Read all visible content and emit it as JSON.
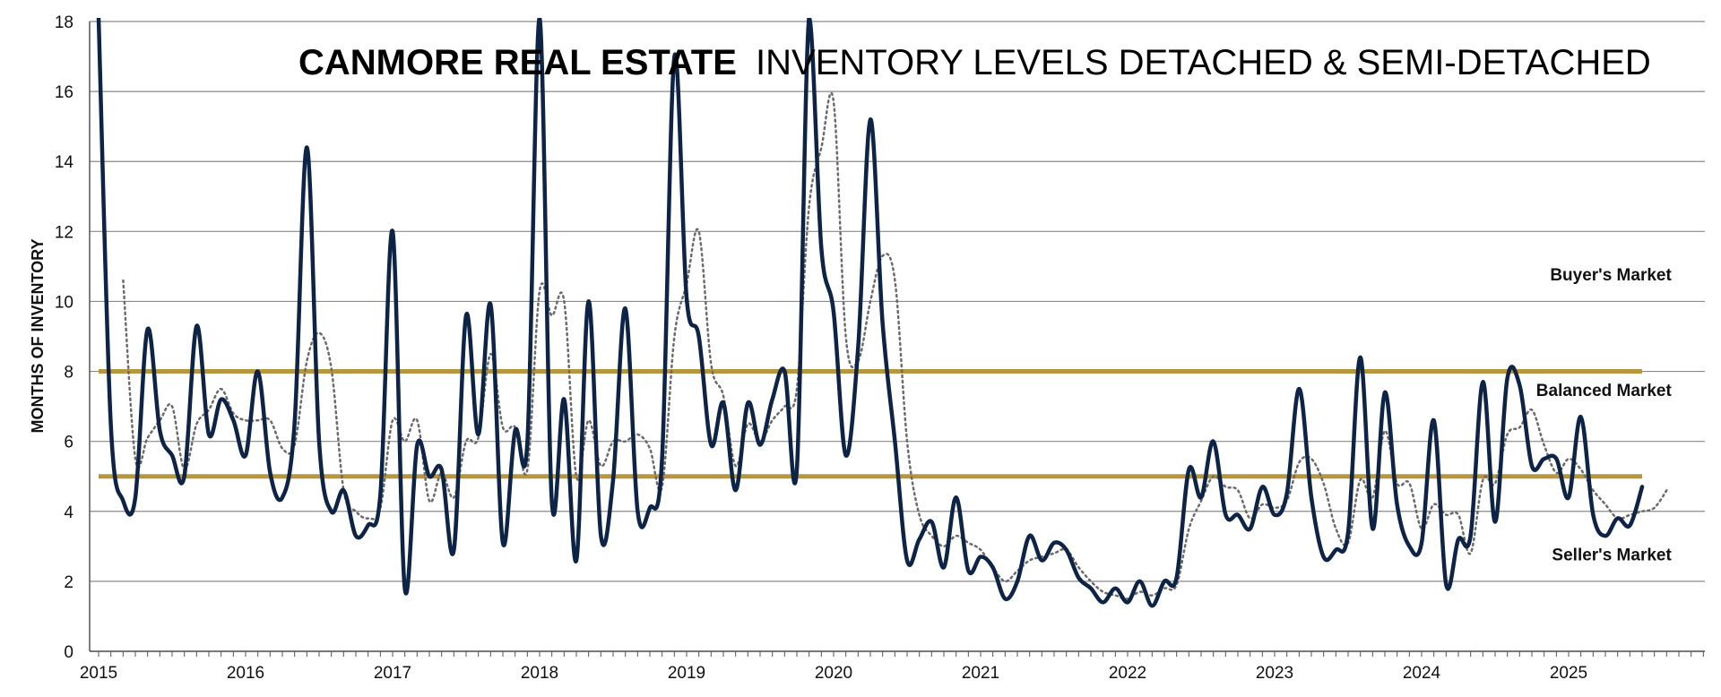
{
  "colors": {
    "main_line": "#0e2446",
    "trend_line": "#6b6b6b",
    "threshold": "#b8963e",
    "grid": "#8a8a8a",
    "axis": "#555555"
  },
  "chart_data": {
    "type": "line",
    "title_bold": "CANMORE REAL ESTATE",
    "title_rest": "INVENTORY LEVELS DETACHED & SEMI-DETACHED",
    "ylabel": "MONTHS OF INVENTORY",
    "xlabel": "",
    "ylim": [
      0,
      18
    ],
    "yticks": [
      0,
      2,
      4,
      6,
      8,
      10,
      12,
      14,
      16,
      18
    ],
    "xlim": [
      2015,
      2025.9
    ],
    "xticks": [
      2015,
      2016,
      2017,
      2018,
      2019,
      2020,
      2021,
      2022,
      2023,
      2024,
      2025
    ],
    "xtick_labels": [
      "2015",
      "2016",
      "2017",
      "2018",
      "2019",
      "2020",
      "2021",
      "2022",
      "2023",
      "2024",
      "2025"
    ],
    "grid": true,
    "thresholds": [
      {
        "value": 8,
        "x_range": [
          2015,
          2025.5
        ]
      },
      {
        "value": 5,
        "x_range": [
          2015,
          2025.5
        ]
      }
    ],
    "annotations": [
      {
        "text": "Buyer's Market",
        "x": 2025.7,
        "y": 10.6
      },
      {
        "text": "Balanced Market",
        "x": 2025.7,
        "y": 7.3
      },
      {
        "text": "Seller's Market",
        "x": 2025.7,
        "y": 2.6
      }
    ],
    "series": [
      {
        "style": "solid",
        "points": [
          [
            2015.0,
            18.5
          ],
          [
            2015.083,
            6.5
          ],
          [
            2015.167,
            4.3
          ],
          [
            2015.25,
            4.4
          ],
          [
            2015.333,
            9.2
          ],
          [
            2015.417,
            6.3
          ],
          [
            2015.5,
            5.6
          ],
          [
            2015.583,
            5.0
          ],
          [
            2015.667,
            9.3
          ],
          [
            2015.75,
            6.2
          ],
          [
            2015.833,
            7.2
          ],
          [
            2015.917,
            6.6
          ],
          [
            2016.0,
            5.6
          ],
          [
            2016.083,
            8.0
          ],
          [
            2016.167,
            5.1
          ],
          [
            2016.25,
            4.4
          ],
          [
            2016.333,
            6.5
          ],
          [
            2016.417,
            14.4
          ],
          [
            2016.5,
            6.0
          ],
          [
            2016.583,
            4.0
          ],
          [
            2016.667,
            4.6
          ],
          [
            2016.75,
            3.3
          ],
          [
            2016.833,
            3.6
          ],
          [
            2016.917,
            4.5
          ],
          [
            2017.0,
            12.0
          ],
          [
            2017.083,
            1.8
          ],
          [
            2017.167,
            5.9
          ],
          [
            2017.25,
            5.0
          ],
          [
            2017.333,
            5.2
          ],
          [
            2017.417,
            2.9
          ],
          [
            2017.5,
            9.6
          ],
          [
            2017.583,
            6.2
          ],
          [
            2017.667,
            9.9
          ],
          [
            2017.75,
            3.1
          ],
          [
            2017.833,
            6.3
          ],
          [
            2017.917,
            6.0
          ],
          [
            2018.0,
            18.5
          ],
          [
            2018.083,
            4.3
          ],
          [
            2018.167,
            7.2
          ],
          [
            2018.25,
            2.6
          ],
          [
            2018.333,
            10.0
          ],
          [
            2018.417,
            3.3
          ],
          [
            2018.5,
            4.9
          ],
          [
            2018.583,
            9.8
          ],
          [
            2018.667,
            4.0
          ],
          [
            2018.75,
            4.1
          ],
          [
            2018.833,
            5.5
          ],
          [
            2018.917,
            17.0
          ],
          [
            2019.0,
            10.1
          ],
          [
            2019.083,
            9.0
          ],
          [
            2019.167,
            5.9
          ],
          [
            2019.25,
            7.1
          ],
          [
            2019.333,
            4.6
          ],
          [
            2019.417,
            7.1
          ],
          [
            2019.5,
            5.9
          ],
          [
            2019.583,
            7.2
          ],
          [
            2019.667,
            8.0
          ],
          [
            2019.75,
            5.2
          ],
          [
            2019.833,
            18.5
          ],
          [
            2019.917,
            11.5
          ],
          [
            2020.0,
            9.7
          ],
          [
            2020.083,
            5.6
          ],
          [
            2020.167,
            8.7
          ],
          [
            2020.25,
            15.2
          ],
          [
            2020.333,
            9.4
          ],
          [
            2020.417,
            6.0
          ],
          [
            2020.5,
            2.6
          ],
          [
            2020.583,
            3.2
          ],
          [
            2020.667,
            3.7
          ],
          [
            2020.75,
            2.4
          ],
          [
            2020.833,
            4.4
          ],
          [
            2020.917,
            2.3
          ],
          [
            2021.0,
            2.7
          ],
          [
            2021.083,
            2.4
          ],
          [
            2021.167,
            1.5
          ],
          [
            2021.25,
            2.0
          ],
          [
            2021.333,
            3.3
          ],
          [
            2021.417,
            2.6
          ],
          [
            2021.5,
            3.1
          ],
          [
            2021.583,
            2.9
          ],
          [
            2021.667,
            2.1
          ],
          [
            2021.75,
            1.8
          ],
          [
            2021.833,
            1.4
          ],
          [
            2021.917,
            1.8
          ],
          [
            2022.0,
            1.4
          ],
          [
            2022.083,
            2.0
          ],
          [
            2022.167,
            1.3
          ],
          [
            2022.25,
            2.0
          ],
          [
            2022.333,
            2.1
          ],
          [
            2022.417,
            5.2
          ],
          [
            2022.5,
            4.4
          ],
          [
            2022.583,
            6.0
          ],
          [
            2022.667,
            3.9
          ],
          [
            2022.75,
            3.9
          ],
          [
            2022.833,
            3.5
          ],
          [
            2022.917,
            4.7
          ],
          [
            2023.0,
            3.9
          ],
          [
            2023.083,
            4.5
          ],
          [
            2023.167,
            7.5
          ],
          [
            2023.25,
            4.4
          ],
          [
            2023.333,
            2.7
          ],
          [
            2023.417,
            2.9
          ],
          [
            2023.5,
            3.4
          ],
          [
            2023.583,
            8.4
          ],
          [
            2023.667,
            3.5
          ],
          [
            2023.75,
            7.4
          ],
          [
            2023.833,
            4.2
          ],
          [
            2023.917,
            3.0
          ],
          [
            2024.0,
            3.1
          ],
          [
            2024.083,
            6.6
          ],
          [
            2024.167,
            1.9
          ],
          [
            2024.25,
            3.2
          ],
          [
            2024.333,
            3.3
          ],
          [
            2024.417,
            7.7
          ],
          [
            2024.5,
            3.7
          ],
          [
            2024.583,
            7.8
          ],
          [
            2024.667,
            7.6
          ],
          [
            2024.75,
            5.3
          ],
          [
            2024.833,
            5.5
          ],
          [
            2024.917,
            5.5
          ],
          [
            2025.0,
            4.4
          ],
          [
            2025.083,
            6.7
          ],
          [
            2025.167,
            3.9
          ],
          [
            2025.25,
            3.3
          ],
          [
            2025.333,
            3.8
          ],
          [
            2025.417,
            3.6
          ],
          [
            2025.5,
            4.7
          ]
        ]
      },
      {
        "style": "dotted",
        "points": [
          [
            2015.167,
            10.6
          ],
          [
            2015.25,
            5.5
          ],
          [
            2015.333,
            6.1
          ],
          [
            2015.417,
            6.6
          ],
          [
            2015.5,
            7.0
          ],
          [
            2015.583,
            5.2
          ],
          [
            2015.667,
            6.5
          ],
          [
            2015.75,
            6.9
          ],
          [
            2015.833,
            7.5
          ],
          [
            2015.917,
            6.8
          ],
          [
            2016.0,
            6.6
          ],
          [
            2016.083,
            6.6
          ],
          [
            2016.167,
            6.6
          ],
          [
            2016.25,
            5.8
          ],
          [
            2016.333,
            5.9
          ],
          [
            2016.417,
            8.3
          ],
          [
            2016.5,
            9.1
          ],
          [
            2016.583,
            8.1
          ],
          [
            2016.667,
            4.6
          ],
          [
            2016.75,
            4.0
          ],
          [
            2016.833,
            3.8
          ],
          [
            2016.917,
            4.1
          ],
          [
            2017.0,
            6.6
          ],
          [
            2017.083,
            6.0
          ],
          [
            2017.167,
            6.6
          ],
          [
            2017.25,
            4.3
          ],
          [
            2017.333,
            5.1
          ],
          [
            2017.417,
            4.4
          ],
          [
            2017.5,
            6.0
          ],
          [
            2017.583,
            6.1
          ],
          [
            2017.667,
            8.5
          ],
          [
            2017.75,
            6.4
          ],
          [
            2017.833,
            6.4
          ],
          [
            2017.917,
            5.2
          ],
          [
            2018.0,
            10.3
          ],
          [
            2018.083,
            9.6
          ],
          [
            2018.167,
            10.0
          ],
          [
            2018.25,
            5.0
          ],
          [
            2018.333,
            6.6
          ],
          [
            2018.417,
            5.3
          ],
          [
            2018.5,
            6.0
          ],
          [
            2018.583,
            6.0
          ],
          [
            2018.667,
            6.2
          ],
          [
            2018.75,
            5.8
          ],
          [
            2018.833,
            4.7
          ],
          [
            2018.917,
            9.0
          ],
          [
            2019.0,
            10.5
          ],
          [
            2019.083,
            12.0
          ],
          [
            2019.167,
            8.2
          ],
          [
            2019.25,
            7.3
          ],
          [
            2019.333,
            5.3
          ],
          [
            2019.417,
            6.5
          ],
          [
            2019.5,
            6.0
          ],
          [
            2019.583,
            6.6
          ],
          [
            2019.667,
            7.0
          ],
          [
            2019.75,
            7.5
          ],
          [
            2019.833,
            12.7
          ],
          [
            2019.917,
            14.4
          ],
          [
            2020.0,
            15.7
          ],
          [
            2020.083,
            9.0
          ],
          [
            2020.167,
            8.3
          ],
          [
            2020.25,
            10.0
          ],
          [
            2020.333,
            11.3
          ],
          [
            2020.417,
            10.6
          ],
          [
            2020.5,
            6.0
          ],
          [
            2020.583,
            3.9
          ],
          [
            2020.667,
            3.3
          ],
          [
            2020.75,
            3.0
          ],
          [
            2020.833,
            3.3
          ],
          [
            2020.917,
            3.1
          ],
          [
            2021.0,
            2.9
          ],
          [
            2021.083,
            2.4
          ],
          [
            2021.167,
            2.0
          ],
          [
            2021.25,
            2.3
          ],
          [
            2021.333,
            2.6
          ],
          [
            2021.417,
            2.7
          ],
          [
            2021.5,
            2.8
          ],
          [
            2021.583,
            2.9
          ],
          [
            2021.667,
            2.4
          ],
          [
            2021.75,
            2.0
          ],
          [
            2021.833,
            1.7
          ],
          [
            2021.917,
            1.6
          ],
          [
            2022.0,
            1.5
          ],
          [
            2022.083,
            1.7
          ],
          [
            2022.167,
            1.6
          ],
          [
            2022.25,
            1.8
          ],
          [
            2022.333,
            1.9
          ],
          [
            2022.417,
            3.5
          ],
          [
            2022.5,
            4.3
          ],
          [
            2022.583,
            5.0
          ],
          [
            2022.667,
            4.7
          ],
          [
            2022.75,
            4.6
          ],
          [
            2022.833,
            3.8
          ],
          [
            2022.917,
            4.2
          ],
          [
            2023.0,
            4.1
          ],
          [
            2023.083,
            4.3
          ],
          [
            2023.167,
            5.4
          ],
          [
            2023.25,
            5.5
          ],
          [
            2023.333,
            4.8
          ],
          [
            2023.417,
            3.5
          ],
          [
            2023.5,
            3.1
          ],
          [
            2023.583,
            4.9
          ],
          [
            2023.667,
            4.4
          ],
          [
            2023.75,
            6.3
          ],
          [
            2023.833,
            4.8
          ],
          [
            2023.917,
            4.8
          ],
          [
            2024.0,
            3.5
          ],
          [
            2024.083,
            4.2
          ],
          [
            2024.167,
            3.9
          ],
          [
            2024.25,
            3.9
          ],
          [
            2024.333,
            2.8
          ],
          [
            2024.417,
            4.9
          ],
          [
            2024.5,
            4.8
          ],
          [
            2024.583,
            6.2
          ],
          [
            2024.667,
            6.4
          ],
          [
            2024.75,
            6.9
          ],
          [
            2024.833,
            5.9
          ],
          [
            2024.917,
            5.1
          ],
          [
            2025.0,
            5.5
          ],
          [
            2025.083,
            5.2
          ],
          [
            2025.167,
            4.6
          ],
          [
            2025.25,
            4.2
          ],
          [
            2025.333,
            3.8
          ],
          [
            2025.417,
            3.9
          ],
          [
            2025.5,
            4.0
          ],
          [
            2025.583,
            4.1
          ],
          [
            2025.667,
            4.6
          ]
        ]
      }
    ]
  }
}
